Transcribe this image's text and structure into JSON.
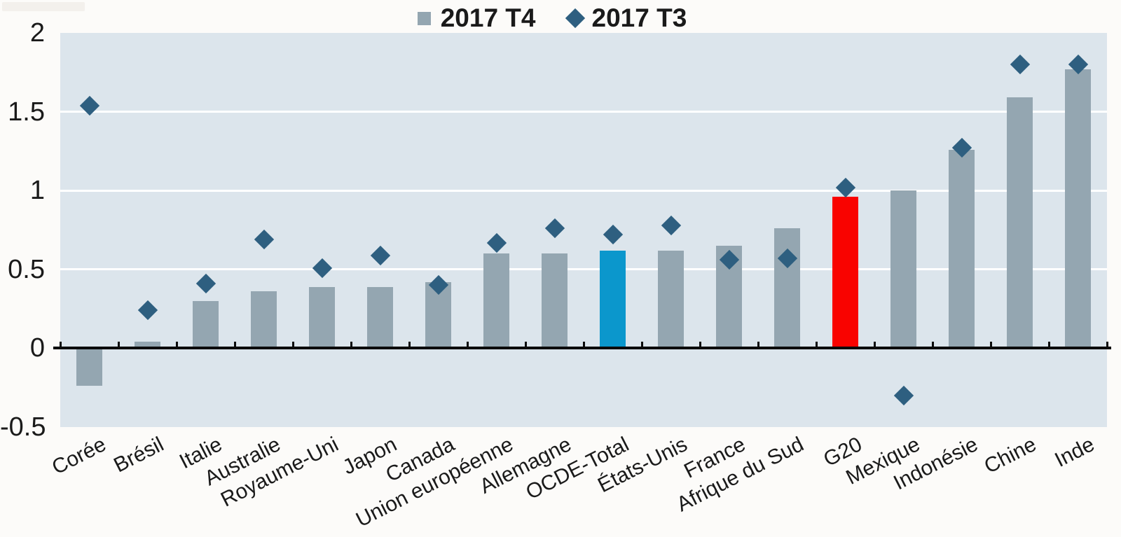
{
  "legend": {
    "items": [
      {
        "label": "2017 T4",
        "marker": "square",
        "color": "#94a6b1"
      },
      {
        "label": "2017 T3",
        "marker": "diamond",
        "color": "#2e5f80"
      }
    ]
  },
  "chart_data": {
    "type": "bar",
    "title": "",
    "xlabel": "",
    "ylabel": "",
    "categories": [
      "Corée",
      "Brésil",
      "Italie",
      "Australie",
      "Royaume-Uni",
      "Japon",
      "Canada",
      "Union européenne",
      "Allemagne",
      "OCDE-Total",
      "États-Unis",
      "France",
      "Afrique du Sud",
      "G20",
      "Mexique",
      "Indonésie",
      "Chine",
      "Inde"
    ],
    "series": [
      {
        "name": "2017 T4",
        "type": "bar",
        "color": "#94a6b1",
        "values": [
          -0.24,
          0.04,
          0.3,
          0.36,
          0.39,
          0.39,
          0.42,
          0.6,
          0.6,
          0.62,
          0.62,
          0.65,
          0.76,
          0.96,
          1.0,
          1.26,
          1.59,
          1.77
        ]
      },
      {
        "name": "2017 T3",
        "type": "scatter",
        "marker": "diamond",
        "color": "#2e5f80",
        "values": [
          1.54,
          0.24,
          0.41,
          0.69,
          0.51,
          0.59,
          0.4,
          0.67,
          0.76,
          0.72,
          0.78,
          0.56,
          0.57,
          1.02,
          -0.3,
          1.27,
          1.8,
          1.8
        ]
      }
    ],
    "bar_color_overrides": {
      "OCDE-Total": "#0b97cc",
      "G20": "#f90300"
    },
    "ylim": [
      -0.5,
      2
    ],
    "yticks": [
      2,
      1.5,
      1,
      0.5,
      0,
      -0.5
    ],
    "ytick_labels": [
      "2",
      "1.5",
      "1",
      "0.5",
      "0",
      "-0.5"
    ],
    "grid_values": [
      1.5,
      1,
      0.5
    ],
    "grid": true,
    "legend_position": "top-center",
    "plot_background": "#dce5ec",
    "grid_color": "#ffffff",
    "axis_color": "#0b0b0b"
  }
}
